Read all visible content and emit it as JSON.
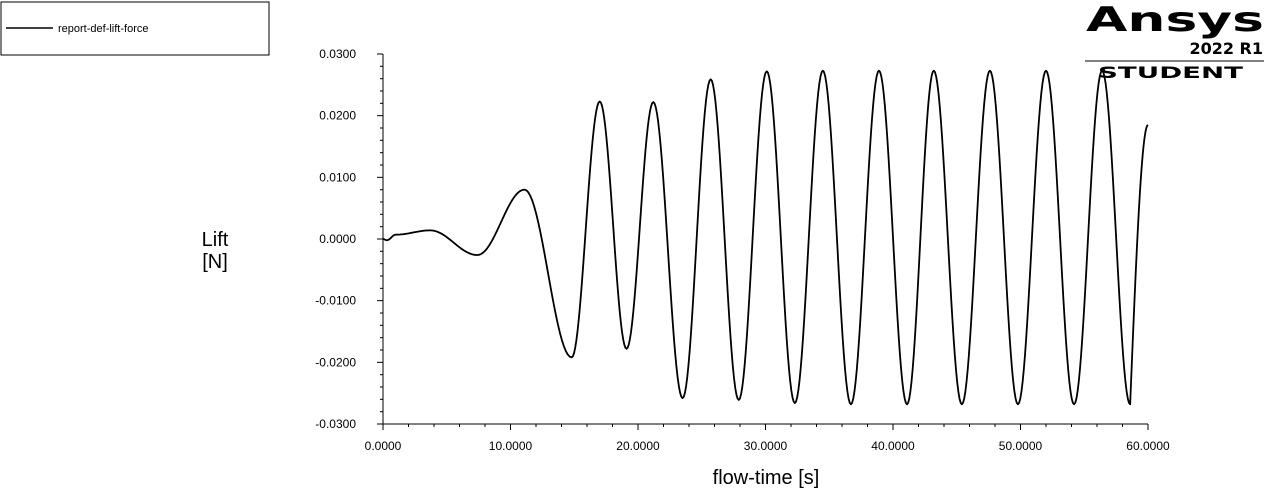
{
  "chart_data": {
    "type": "line",
    "xlabel": "flow-time [s]",
    "ylabel_lines": [
      "Lift",
      "[N]"
    ],
    "xlim": [
      0,
      60
    ],
    "ylim": [
      -0.03,
      0.03
    ],
    "x_ticks": [
      0,
      10,
      20,
      30,
      40,
      50,
      60
    ],
    "x_tick_labels": [
      "0.0000",
      "10.0000",
      "20.0000",
      "30.0000",
      "40.0000",
      "50.0000",
      "60.0000"
    ],
    "y_ticks": [
      0.03,
      0.02,
      0.01,
      0,
      -0.01,
      -0.02,
      -0.03
    ],
    "y_tick_labels": [
      "0.0300",
      "0.0200",
      "0.0100",
      "0.0000",
      "-0.0100",
      "-0.0200",
      "-0.0300"
    ],
    "legend": {
      "position": "top-left",
      "entries": [
        "report-def-lift-force"
      ]
    },
    "grid": false,
    "series": [
      {
        "name": "report-def-lift-force",
        "color": "#000000",
        "extrema": [
          [
            0.0,
            0.0
          ],
          [
            0.3,
            -0.0002
          ],
          [
            1.0,
            0.0007
          ],
          [
            3.7,
            0.0014
          ],
          [
            7.4,
            -0.0026
          ],
          [
            11.1,
            0.008
          ],
          [
            14.8,
            -0.0192
          ],
          [
            17.0,
            0.0223
          ],
          [
            19.1,
            -0.0178
          ],
          [
            21.2,
            0.0222
          ],
          [
            23.5,
            -0.0258
          ],
          [
            25.7,
            0.0259
          ],
          [
            27.9,
            -0.0261
          ],
          [
            30.1,
            0.0272
          ],
          [
            32.3,
            -0.0266
          ],
          [
            34.5,
            0.0273
          ],
          [
            36.7,
            -0.0268
          ],
          [
            38.9,
            0.0273
          ],
          [
            41.1,
            -0.0268
          ],
          [
            43.2,
            0.0273
          ],
          [
            45.4,
            -0.0268
          ],
          [
            47.6,
            0.0273
          ],
          [
            49.8,
            -0.0268
          ],
          [
            52.0,
            0.0273
          ],
          [
            54.2,
            -0.0268
          ],
          [
            56.4,
            0.0273
          ],
          [
            58.6,
            -0.0268
          ],
          [
            60.0,
            0.0185
          ]
        ]
      }
    ]
  },
  "logo": {
    "brand": "Ansys",
    "version": "2022 R1",
    "edition": "STUDENT"
  }
}
